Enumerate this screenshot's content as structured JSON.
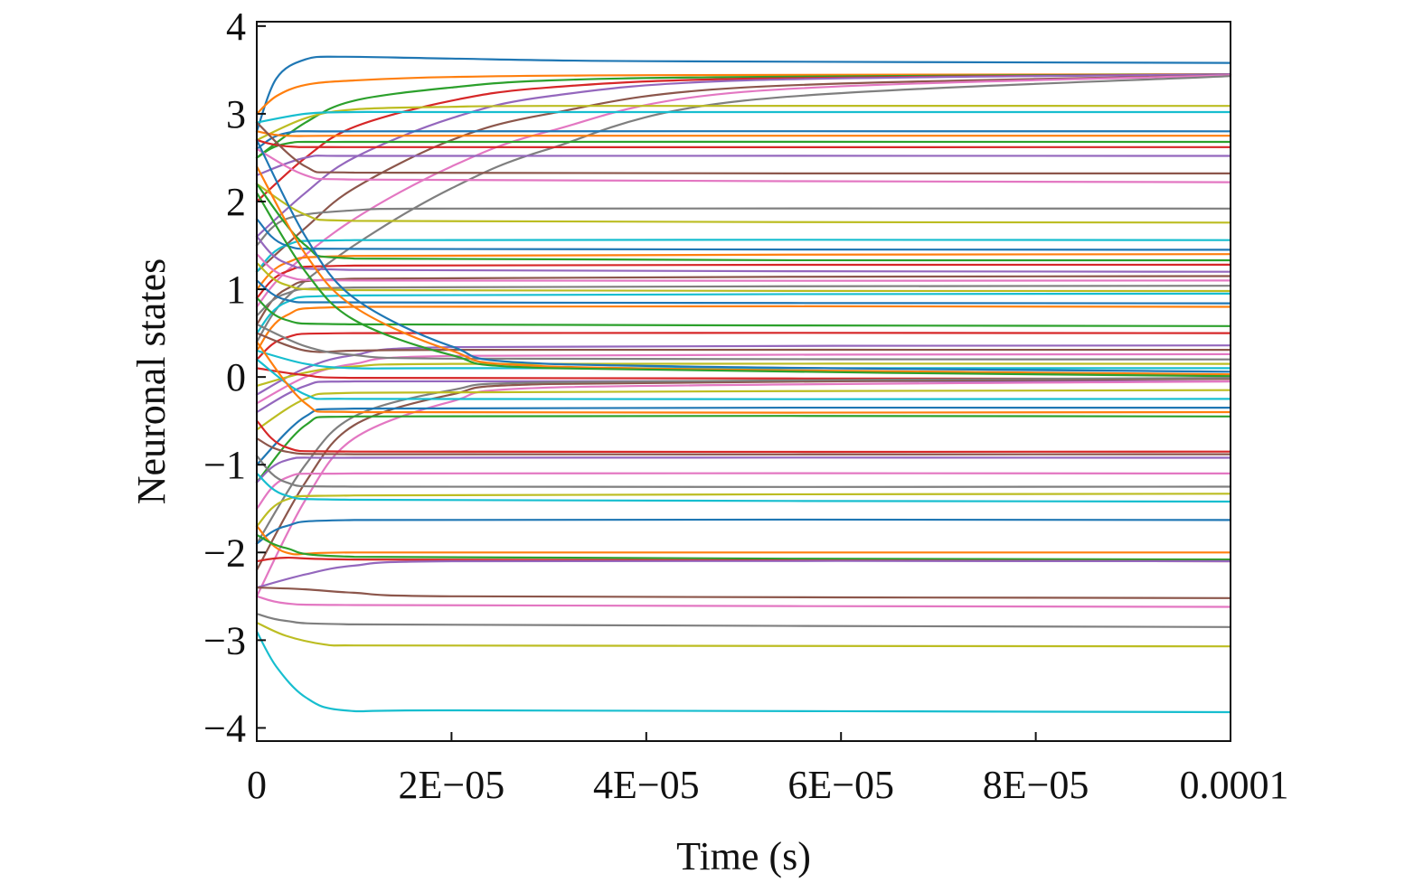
{
  "chart_data": {
    "type": "line",
    "title": "",
    "xlabel": "Time (s)",
    "ylabel": "Neuronal states",
    "xlim": [
      0,
      0.0001
    ],
    "ylim": [
      -4.15,
      4.05
    ],
    "grid": false,
    "legend": "none",
    "x_ticks": [
      {
        "value": 0,
        "label": "0"
      },
      {
        "value": 2e-05,
        "label": "2E−05"
      },
      {
        "value": 4e-05,
        "label": "4E−05"
      },
      {
        "value": 6e-05,
        "label": "6E−05"
      },
      {
        "value": 8e-05,
        "label": "8E−05"
      },
      {
        "value": 0.0001,
        "label": "0.0001"
      }
    ],
    "y_ticks": [
      {
        "value": 4,
        "label": "4"
      },
      {
        "value": 3,
        "label": "3"
      },
      {
        "value": 2,
        "label": "2"
      },
      {
        "value": 1,
        "label": "1"
      },
      {
        "value": 0,
        "label": "0"
      },
      {
        "value": -1,
        "label": "−1"
      },
      {
        "value": -2,
        "label": "−2"
      },
      {
        "value": -3,
        "label": "−3"
      },
      {
        "value": -4,
        "label": "−4"
      }
    ],
    "colors": [
      "#1f77b4",
      "#ff7f0e",
      "#2ca02c",
      "#d62728",
      "#9467bd",
      "#8c564b",
      "#e377c2",
      "#7f7f7f",
      "#bcbd22",
      "#17becf"
    ],
    "series": [
      {
        "x": [
          0,
          2e-06,
          5e-06,
          9e-06,
          2e-05,
          4e-05,
          0.0001
        ],
        "y": [
          2.8,
          3.4,
          3.62,
          3.65,
          3.63,
          3.6,
          3.58
        ]
      },
      {
        "x": [
          0,
          2e-06,
          5e-06,
          1e-05,
          2e-05,
          4e-05,
          0.0001
        ],
        "y": [
          3.0,
          3.2,
          3.33,
          3.38,
          3.42,
          3.44,
          3.45
        ]
      },
      {
        "x": [
          0,
          5e-06,
          1e-05,
          2e-05,
          3e-05,
          5e-05,
          0.0001
        ],
        "y": [
          2.5,
          2.9,
          3.15,
          3.3,
          3.38,
          3.42,
          3.45
        ]
      },
      {
        "x": [
          0,
          5e-06,
          1e-05,
          2e-05,
          3e-05,
          5e-05,
          0.0001
        ],
        "y": [
          2.0,
          2.5,
          2.85,
          3.15,
          3.3,
          3.4,
          3.45
        ]
      },
      {
        "x": [
          0,
          5e-06,
          1e-05,
          2e-05,
          3e-05,
          5e-05,
          0.0001
        ],
        "y": [
          1.6,
          2.1,
          2.5,
          2.95,
          3.2,
          3.38,
          3.45
        ]
      },
      {
        "x": [
          0,
          5e-06,
          1e-05,
          2e-05,
          3e-05,
          5e-05,
          0.0001
        ],
        "y": [
          1.2,
          1.7,
          2.15,
          2.7,
          3.0,
          3.3,
          3.44
        ]
      },
      {
        "x": [
          0,
          3e-06,
          1e-05,
          2e-05,
          3e-05,
          5e-05,
          0.0001
        ],
        "y": [
          0.8,
          1.2,
          1.8,
          2.4,
          2.8,
          3.25,
          3.44
        ]
      },
      {
        "x": [
          0,
          3e-06,
          1e-05,
          2e-05,
          3e-05,
          5e-05,
          0.0001
        ],
        "y": [
          0.4,
          0.9,
          1.5,
          2.15,
          2.6,
          3.15,
          3.43
        ]
      },
      {
        "x": [
          0,
          5e-06,
          1e-05,
          2e-05,
          3e-05,
          0.0001
        ],
        "y": [
          2.7,
          2.95,
          3.05,
          3.08,
          3.09,
          3.09
        ]
      },
      {
        "x": [
          0,
          5e-06,
          1e-05,
          2e-05,
          0.0001
        ],
        "y": [
          2.9,
          3.0,
          3.02,
          3.02,
          3.02
        ]
      },
      {
        "x": [
          0,
          3e-06,
          1e-05,
          0.0001
        ],
        "y": [
          2.6,
          2.78,
          2.8,
          2.8
        ]
      },
      {
        "x": [
          0,
          3e-06,
          1e-05,
          0.0001
        ],
        "y": [
          2.8,
          2.75,
          2.75,
          2.75
        ]
      },
      {
        "x": [
          0,
          3e-06,
          1e-05,
          0.0001
        ],
        "y": [
          2.5,
          2.66,
          2.68,
          2.68
        ]
      },
      {
        "x": [
          0,
          3e-06,
          1e-05,
          0.0001
        ],
        "y": [
          2.7,
          2.63,
          2.62,
          2.62
        ]
      },
      {
        "x": [
          0,
          5e-06,
          1e-05,
          0.0001
        ],
        "y": [
          2.3,
          2.5,
          2.52,
          2.52
        ]
      },
      {
        "x": [
          0,
          5e-06,
          1e-05,
          0.0001
        ],
        "y": [
          2.9,
          2.4,
          2.33,
          2.32
        ]
      },
      {
        "x": [
          0,
          5e-06,
          1e-05,
          0.0001
        ],
        "y": [
          2.6,
          2.3,
          2.25,
          2.22
        ]
      },
      {
        "x": [
          0,
          3e-06,
          1e-05,
          2e-05,
          0.0001
        ],
        "y": [
          1.5,
          1.8,
          1.9,
          1.92,
          1.92
        ]
      },
      {
        "x": [
          0,
          5e-06,
          1e-05,
          0.0001
        ],
        "y": [
          2.2,
          1.85,
          1.78,
          1.76
        ]
      },
      {
        "x": [
          0,
          3e-06,
          1e-05,
          0.0001
        ],
        "y": [
          1.2,
          1.5,
          1.56,
          1.56
        ]
      },
      {
        "x": [
          0,
          3e-06,
          1e-05,
          0.0001
        ],
        "y": [
          1.8,
          1.5,
          1.46,
          1.45
        ]
      },
      {
        "x": [
          0,
          3e-06,
          1e-05,
          0.0001
        ],
        "y": [
          1.0,
          1.3,
          1.38,
          1.4
        ]
      },
      {
        "x": [
          0,
          5e-06,
          1e-05,
          0.0001
        ],
        "y": [
          2.2,
          1.5,
          1.35,
          1.33
        ]
      },
      {
        "x": [
          0,
          3e-06,
          1e-05,
          0.0001
        ],
        "y": [
          0.9,
          1.2,
          1.27,
          1.28
        ]
      },
      {
        "x": [
          0,
          3e-06,
          1e-05,
          0.0001
        ],
        "y": [
          1.6,
          1.3,
          1.22,
          1.2
        ]
      },
      {
        "x": [
          0,
          3e-06,
          1e-05,
          0.0001
        ],
        "y": [
          0.6,
          1.0,
          1.12,
          1.15
        ]
      },
      {
        "x": [
          0,
          3e-06,
          1e-05,
          0.0001
        ],
        "y": [
          1.4,
          1.15,
          1.1,
          1.1
        ]
      },
      {
        "x": [
          0,
          3e-06,
          1e-05,
          0.0001
        ],
        "y": [
          0.7,
          0.95,
          1.02,
          1.04
        ]
      },
      {
        "x": [
          0,
          3e-06,
          1e-05,
          0.0001
        ],
        "y": [
          1.3,
          1.05,
          0.99,
          0.98
        ]
      },
      {
        "x": [
          0,
          3e-06,
          1e-05,
          0.0001
        ],
        "y": [
          0.5,
          0.85,
          0.93,
          0.95
        ]
      },
      {
        "x": [
          0,
          3e-06,
          1e-05,
          0.0001
        ],
        "y": [
          1.1,
          0.88,
          0.85,
          0.84
        ]
      },
      {
        "x": [
          0,
          3e-06,
          1e-05,
          0.0001
        ],
        "y": [
          0.3,
          0.7,
          0.8,
          0.8
        ]
      },
      {
        "x": [
          0,
          3e-06,
          1e-05,
          0.0001
        ],
        "y": [
          0.9,
          0.65,
          0.6,
          0.58
        ]
      },
      {
        "x": [
          0,
          3e-06,
          1e-05,
          0.0001
        ],
        "y": [
          0.2,
          0.45,
          0.5,
          0.5
        ]
      },
      {
        "x": [
          0,
          5e-06,
          1e-05,
          2e-05,
          0.0001
        ],
        "y": [
          -0.2,
          0.1,
          0.25,
          0.34,
          0.36
        ]
      },
      {
        "x": [
          0,
          5e-06,
          1e-05,
          2e-05,
          0.0001
        ],
        "y": [
          0.5,
          0.3,
          0.3,
          0.31,
          0.31
        ]
      },
      {
        "x": [
          0,
          5e-06,
          1e-05,
          2e-05,
          0.0001
        ],
        "y": [
          -0.3,
          0.0,
          0.15,
          0.24,
          0.26
        ]
      },
      {
        "x": [
          0,
          5e-06,
          1e-05,
          2e-05,
          0.0001
        ],
        "y": [
          0.6,
          0.35,
          0.25,
          0.21,
          0.2
        ]
      },
      {
        "x": [
          0,
          5e-06,
          1e-05,
          2e-05,
          0.0001
        ],
        "y": [
          -0.1,
          0.05,
          0.12,
          0.15,
          0.15
        ]
      },
      {
        "x": [
          0,
          5e-06,
          1e-05,
          2e-05,
          0.0001
        ],
        "y": [
          0.3,
          0.15,
          0.1,
          0.1,
          0.1
        ]
      },
      {
        "x": [
          0,
          5e-06,
          1e-05,
          2e-05,
          3e-05,
          0.0001
        ],
        "y": [
          2.7,
          1.6,
          0.9,
          0.35,
          0.15,
          0.06
        ]
      },
      {
        "x": [
          0,
          5e-06,
          1e-05,
          2e-05,
          3e-05,
          0.0001
        ],
        "y": [
          2.4,
          1.4,
          0.8,
          0.3,
          0.12,
          0.03
        ]
      },
      {
        "x": [
          0,
          5e-06,
          1e-05,
          2e-05,
          3e-05,
          0.0001
        ],
        "y": [
          2.1,
          1.2,
          0.65,
          0.25,
          0.1,
          0.01
        ]
      },
      {
        "x": [
          0,
          5e-06,
          1e-05,
          0.0001
        ],
        "y": [
          0.1,
          0.02,
          -0.01,
          -0.02
        ]
      },
      {
        "x": [
          0,
          5e-06,
          1e-05,
          0.0001
        ],
        "y": [
          -0.4,
          -0.1,
          -0.05,
          -0.05
        ]
      },
      {
        "x": [
          0,
          5e-06,
          1e-05,
          2e-05,
          3e-05,
          0.0001
        ],
        "y": [
          -2.2,
          -1.2,
          -0.55,
          -0.2,
          -0.08,
          -0.02
        ]
      },
      {
        "x": [
          0,
          5e-06,
          1e-05,
          2e-05,
          3e-05,
          0.0001
        ],
        "y": [
          -2.5,
          -1.4,
          -0.7,
          -0.28,
          -0.12,
          -0.05
        ]
      },
      {
        "x": [
          0,
          5e-06,
          1e-05,
          2e-05,
          3e-05,
          0.0001
        ],
        "y": [
          -1.9,
          -1.0,
          -0.45,
          -0.15,
          -0.06,
          -0.01
        ]
      },
      {
        "x": [
          0,
          5e-06,
          1e-05,
          0.0001
        ],
        "y": [
          -0.6,
          -0.25,
          -0.18,
          -0.15
        ]
      },
      {
        "x": [
          0,
          5e-06,
          1e-05,
          0.0001
        ],
        "y": [
          0.2,
          -0.2,
          -0.25,
          -0.25
        ]
      },
      {
        "x": [
          0,
          5e-06,
          1e-05,
          0.0001
        ],
        "y": [
          -1.0,
          -0.45,
          -0.36,
          -0.35
        ]
      },
      {
        "x": [
          0,
          5e-06,
          1e-05,
          0.0001
        ],
        "y": [
          0.4,
          -0.3,
          -0.4,
          -0.4
        ]
      },
      {
        "x": [
          0,
          5e-06,
          1e-05,
          0.0001
        ],
        "y": [
          -1.2,
          -0.55,
          -0.45,
          -0.45
        ]
      },
      {
        "x": [
          0,
          3e-06,
          1e-05,
          0.0001
        ],
        "y": [
          -0.5,
          -0.8,
          -0.85,
          -0.85
        ]
      },
      {
        "x": [
          0,
          3e-06,
          1e-05,
          0.0001
        ],
        "y": [
          -1.2,
          -0.95,
          -0.92,
          -0.92
        ]
      },
      {
        "x": [
          0,
          3e-06,
          1e-05,
          0.0001
        ],
        "y": [
          -0.7,
          -0.85,
          -0.88,
          -0.88
        ]
      },
      {
        "x": [
          0,
          3e-06,
          1e-05,
          0.0001
        ],
        "y": [
          -1.5,
          -1.15,
          -1.1,
          -1.1
        ]
      },
      {
        "x": [
          0,
          3e-06,
          1e-05,
          0.0001
        ],
        "y": [
          -0.9,
          -1.2,
          -1.25,
          -1.25
        ]
      },
      {
        "x": [
          0,
          3e-06,
          1e-05,
          0.0001
        ],
        "y": [
          -1.7,
          -1.4,
          -1.35,
          -1.33
        ]
      },
      {
        "x": [
          0,
          3e-06,
          1e-05,
          0.0001
        ],
        "y": [
          -1.1,
          -1.35,
          -1.4,
          -1.42
        ]
      },
      {
        "x": [
          0,
          3e-06,
          1e-05,
          0.0001
        ],
        "y": [
          -1.9,
          -1.7,
          -1.63,
          -1.63
        ]
      },
      {
        "x": [
          0,
          3e-06,
          1e-05,
          0.0001
        ],
        "y": [
          -1.7,
          -2.0,
          -2.0,
          -2.0
        ]
      },
      {
        "x": [
          0,
          3e-06,
          1e-05,
          0.0001
        ],
        "y": [
          -1.8,
          -1.95,
          -2.05,
          -2.08
        ]
      },
      {
        "x": [
          0,
          3e-06,
          1e-05,
          0.0001
        ],
        "y": [
          -2.1,
          -2.06,
          -2.08,
          -2.1
        ]
      },
      {
        "x": [
          0,
          5e-06,
          1e-05,
          2e-05,
          0.0001
        ],
        "y": [
          -2.4,
          -2.25,
          -2.15,
          -2.1,
          -2.1
        ]
      },
      {
        "x": [
          0,
          5e-06,
          1e-05,
          2e-05,
          0.0001
        ],
        "y": [
          -2.4,
          -2.42,
          -2.46,
          -2.5,
          -2.52
        ]
      },
      {
        "x": [
          0,
          3e-06,
          1e-05,
          0.0001
        ],
        "y": [
          -2.5,
          -2.58,
          -2.6,
          -2.62
        ]
      },
      {
        "x": [
          0,
          3e-06,
          1e-05,
          0.0001
        ],
        "y": [
          -2.7,
          -2.78,
          -2.82,
          -2.85
        ]
      },
      {
        "x": [
          0,
          3e-06,
          7e-06,
          1e-05,
          0.0001
        ],
        "y": [
          -2.8,
          -2.95,
          -3.05,
          -3.06,
          -3.07
        ]
      },
      {
        "x": [
          0,
          2e-06,
          5e-06,
          9e-06,
          2e-05,
          0.0001
        ],
        "y": [
          -2.9,
          -3.3,
          -3.65,
          -3.8,
          -3.8,
          -3.82
        ]
      }
    ]
  }
}
